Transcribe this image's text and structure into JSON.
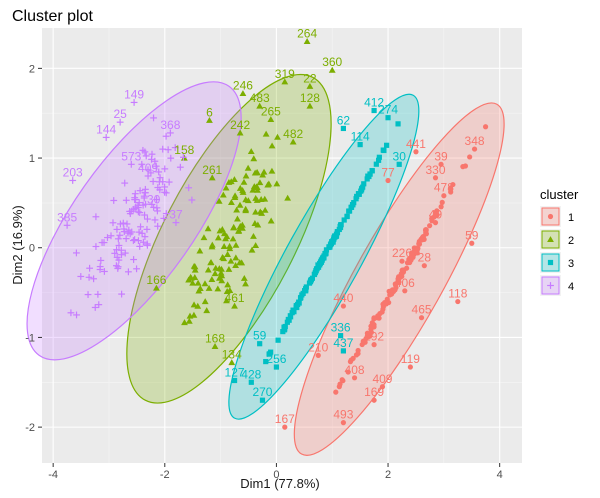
{
  "chart_data": {
    "type": "scatter",
    "title": "Cluster plot",
    "xlabel": "Dim1 (77.8%)",
    "ylabel": "Dim2 (16.9%)",
    "xlim": [
      -4.2,
      4.4
    ],
    "ylim": [
      -2.4,
      2.45
    ],
    "x_ticks": [
      -4,
      -2,
      0,
      2,
      4
    ],
    "y_ticks": [
      -2,
      -1,
      0,
      1,
      2
    ],
    "grid": true,
    "legend": {
      "title": "cluster",
      "position": "right",
      "entries": [
        "1",
        "2",
        "3",
        "4"
      ]
    },
    "colors": {
      "1": "#F8766D",
      "2": "#7CAE00",
      "3": "#00BFC4",
      "4": "#C77CFF"
    },
    "shapes": {
      "1": "circle",
      "2": "triangle",
      "3": "square",
      "4": "cross"
    },
    "clusters": [
      {
        "name": "1",
        "ellipse": {
          "center": [
            2.2,
            -0.35
          ],
          "half_axis_end_a": [
            3.95,
            1.6
          ],
          "half_axis_end_b": [
            1.75,
            -0.75
          ]
        },
        "labeled_points": [
          {
            "label": "348",
            "x": 3.55,
            "y": 1.1
          },
          {
            "label": "39",
            "x": 2.95,
            "y": 0.93
          },
          {
            "label": "441",
            "x": 2.5,
            "y": 1.07
          },
          {
            "label": "330",
            "x": 2.85,
            "y": 0.78
          },
          {
            "label": "478",
            "x": 3.0,
            "y": 0.58
          },
          {
            "label": "49",
            "x": 2.85,
            "y": 0.28
          },
          {
            "label": "59",
            "x": 3.5,
            "y": 0.05
          },
          {
            "label": "28",
            "x": 2.65,
            "y": -0.2
          },
          {
            "label": "118",
            "x": 3.25,
            "y": -0.6
          },
          {
            "label": "465",
            "x": 2.6,
            "y": -0.78
          },
          {
            "label": "406",
            "x": 2.3,
            "y": -0.48
          },
          {
            "label": "119",
            "x": 2.4,
            "y": -1.33
          },
          {
            "label": "409",
            "x": 1.9,
            "y": -1.55
          },
          {
            "label": "169",
            "x": 1.75,
            "y": -1.7
          },
          {
            "label": "493",
            "x": 1.2,
            "y": -1.95
          },
          {
            "label": "167",
            "x": 0.15,
            "y": -2.0
          },
          {
            "label": "408",
            "x": 1.4,
            "y": -1.45
          },
          {
            "label": "210",
            "x": 0.75,
            "y": -1.2
          },
          {
            "label": "192",
            "x": 1.75,
            "y": -1.08
          },
          {
            "label": "226",
            "x": 2.25,
            "y": -0.15
          },
          {
            "label": "440",
            "x": 1.2,
            "y": -0.65
          },
          {
            "label": "77",
            "x": 2.0,
            "y": 0.75
          }
        ]
      },
      {
        "name": "2",
        "ellipse": {
          "center": [
            -0.85,
            0.1
          ],
          "half_axis_end_a": [
            0.65,
            1.9
          ],
          "half_axis_end_b": [
            -0.3,
            -0.55
          ]
        },
        "labeled_points": [
          {
            "label": "264",
            "x": 0.55,
            "y": 2.3
          },
          {
            "label": "360",
            "x": 1.0,
            "y": 1.98
          },
          {
            "label": "319",
            "x": 0.15,
            "y": 1.85
          },
          {
            "label": "22",
            "x": 0.6,
            "y": 1.8
          },
          {
            "label": "246",
            "x": -0.6,
            "y": 1.72
          },
          {
            "label": "483",
            "x": -0.3,
            "y": 1.58
          },
          {
            "label": "128",
            "x": 0.6,
            "y": 1.58
          },
          {
            "label": "265",
            "x": -0.1,
            "y": 1.43
          },
          {
            "label": "482",
            "x": 0.3,
            "y": 1.18
          },
          {
            "label": "6",
            "x": -1.2,
            "y": 1.42
          },
          {
            "label": "242",
            "x": -0.65,
            "y": 1.28
          },
          {
            "label": "158",
            "x": -1.65,
            "y": 1.0
          },
          {
            "label": "261",
            "x": -1.15,
            "y": 0.78
          },
          {
            "label": "134",
            "x": -0.8,
            "y": -1.28
          },
          {
            "label": "168",
            "x": -1.1,
            "y": -1.1
          },
          {
            "label": "461",
            "x": -0.75,
            "y": -0.65
          },
          {
            "label": "166",
            "x": -2.15,
            "y": -0.45
          }
        ]
      },
      {
        "name": "3",
        "ellipse": {
          "center": [
            0.85,
            -0.1
          ],
          "half_axis_end_a": [
            2.45,
            1.7
          ],
          "half_axis_end_b": [
            0.5,
            -0.45
          ]
        },
        "labeled_points": [
          {
            "label": "412",
            "x": 1.75,
            "y": 1.53
          },
          {
            "label": "274",
            "x": 2.0,
            "y": 1.45
          },
          {
            "label": "114",
            "x": 1.5,
            "y": 1.15
          },
          {
            "label": "30",
            "x": 2.2,
            "y": 0.93
          },
          {
            "label": "62",
            "x": 1.2,
            "y": 1.33
          },
          {
            "label": "437",
            "x": 1.2,
            "y": -1.15
          },
          {
            "label": "270",
            "x": -0.25,
            "y": -1.7
          },
          {
            "label": "256",
            "x": 0.0,
            "y": -1.33
          },
          {
            "label": "428",
            "x": -0.45,
            "y": -1.5
          },
          {
            "label": "59",
            "x": -0.3,
            "y": -1.07
          },
          {
            "label": "336",
            "x": 1.15,
            "y": -0.98
          },
          {
            "label": "127",
            "x": -0.75,
            "y": -1.48
          }
        ]
      },
      {
        "name": "4",
        "ellipse": {
          "center": [
            -2.55,
            0.3
          ],
          "half_axis_end_a": [
            -0.85,
            1.8
          ],
          "half_axis_end_b": [
            -2.05,
            -0.3
          ]
        },
        "labeled_points": [
          {
            "label": "149",
            "x": -2.55,
            "y": 1.62
          },
          {
            "label": "25",
            "x": -2.8,
            "y": 1.4
          },
          {
            "label": "144",
            "x": -3.05,
            "y": 1.23
          },
          {
            "label": "368",
            "x": -1.9,
            "y": 1.28
          },
          {
            "label": "573",
            "x": -2.6,
            "y": 0.93
          },
          {
            "label": "203",
            "x": -3.65,
            "y": 0.75
          },
          {
            "label": "409",
            "x": -2.3,
            "y": 0.8
          },
          {
            "label": "385",
            "x": -3.75,
            "y": 0.25
          },
          {
            "label": "30",
            "x": -2.2,
            "y": 0.45
          },
          {
            "label": "37",
            "x": -1.8,
            "y": 0.28
          }
        ]
      }
    ]
  }
}
